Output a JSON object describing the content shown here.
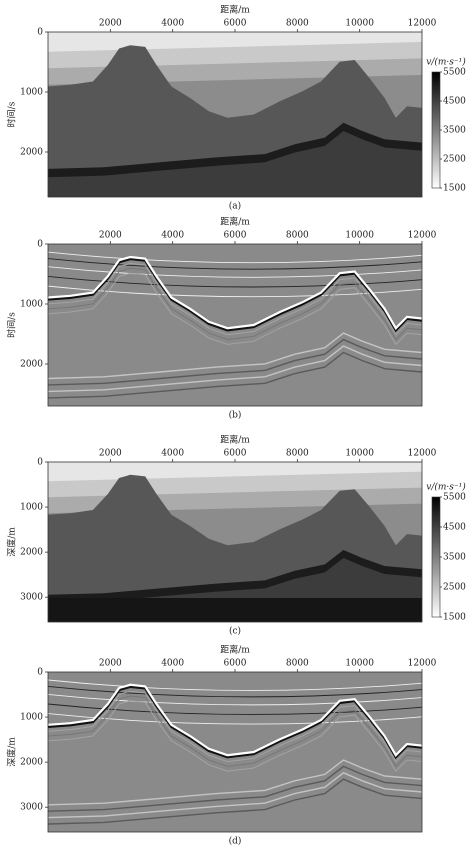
{
  "chart_data": [
    {
      "type": "heatmap",
      "x_label": "距离/m",
      "y_label": "时间/s",
      "caption": "(a)",
      "xlim": [
        0,
        12000
      ],
      "xticks": [
        2000,
        4000,
        6000,
        8000,
        10000,
        12000
      ],
      "ylim": [
        0,
        2750
      ],
      "yticks": [
        0,
        1000,
        2000
      ],
      "y_inverted": true,
      "cmap": "gray_r",
      "colorbar": {
        "label": "v/(m·s⁻¹)",
        "clim": [
          1500,
          5500
        ],
        "ticks": [
          1500,
          2500,
          3500,
          4500,
          5500
        ]
      }
    },
    {
      "type": "heatmap",
      "x_label": "距离/m",
      "y_label": "时间/s",
      "caption": "(b)",
      "xlim": [
        0,
        12000
      ],
      "xticks": [
        2000,
        4000,
        6000,
        8000,
        10000,
        12000
      ],
      "ylim": [
        0,
        2700
      ],
      "yticks": [
        0,
        1000,
        2000
      ],
      "y_inverted": true,
      "cmap": "gray"
    },
    {
      "type": "heatmap",
      "x_label": "距离/m",
      "y_label": "深度/m",
      "caption": "(c)",
      "xlim": [
        0,
        12000
      ],
      "xticks": [
        2000,
        4000,
        6000,
        8000,
        10000,
        12000
      ],
      "ylim": [
        0,
        3550
      ],
      "yticks": [
        0,
        1000,
        2000,
        3000
      ],
      "y_inverted": true,
      "cmap": "gray_r",
      "colorbar": {
        "label": "v/(m·s⁻¹)",
        "clim": [
          1500,
          5500
        ],
        "ticks": [
          1500,
          2500,
          3500,
          4500,
          5500
        ]
      }
    },
    {
      "type": "heatmap",
      "x_label": "距离/m",
      "y_label": "深度/m",
      "caption": "(d)",
      "xlim": [
        0,
        12000
      ],
      "xticks": [
        2000,
        4000,
        6000,
        8000,
        10000,
        12000
      ],
      "ylim": [
        0,
        3550
      ],
      "yticks": [
        0,
        1000,
        2000,
        3000
      ],
      "y_inverted": true,
      "cmap": "gray"
    }
  ]
}
